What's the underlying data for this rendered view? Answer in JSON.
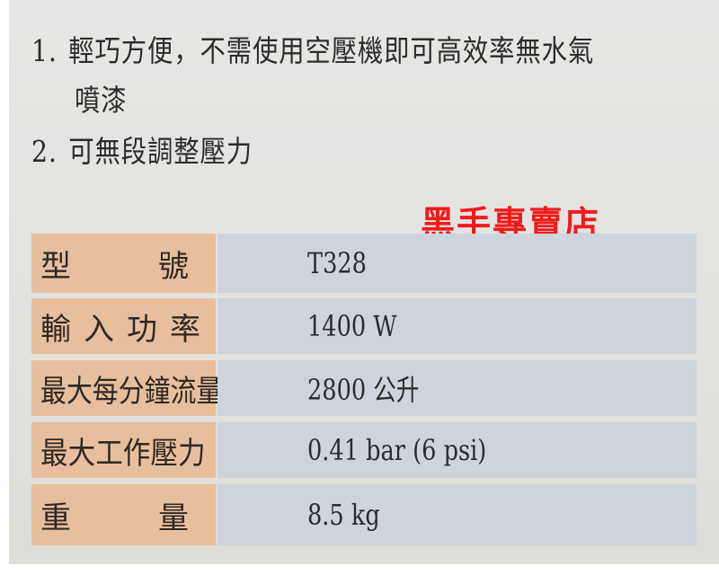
{
  "features": [
    {
      "num": "1.",
      "text": "輕巧方便，不需使用空壓機即可高效率無水氣",
      "cont": "噴漆"
    },
    {
      "num": "2.",
      "text": "可無段調整壓力"
    }
  ],
  "brand": "黑手專賣店",
  "specs": [
    {
      "label": "型　　號",
      "chars": [
        "型",
        "號"
      ],
      "value": "T328"
    },
    {
      "label": "輸入功率",
      "chars": [
        "輸",
        "入",
        "功",
        "率"
      ],
      "value": "1400 W"
    },
    {
      "label": "最大每分鐘流量",
      "value": "2800 公升"
    },
    {
      "label": "最大工作壓力",
      "value": "0.41 bar (6 psi)"
    },
    {
      "label": "重　　量",
      "chars": [
        "重",
        "量"
      ],
      "value": "8.5 kg"
    }
  ],
  "colors": {
    "label_bg": "#e7bf9c",
    "value_bg": "#cdd4db",
    "brand": "#f01c1c"
  }
}
